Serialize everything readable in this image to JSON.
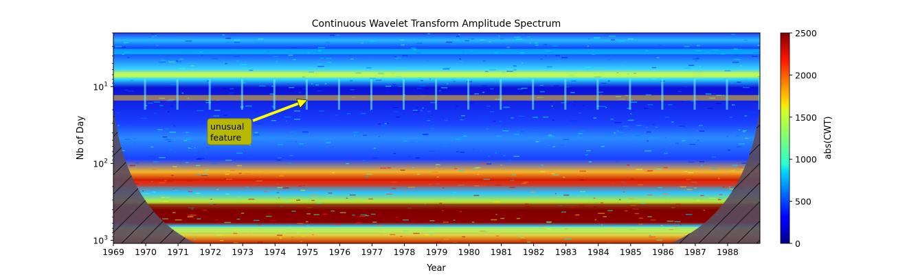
{
  "chart_data": {
    "type": "heatmap",
    "title": "Continuous Wavelet Transform Amplitude Spectrum",
    "xlabel": "Year",
    "ylabel": "Nb of Day",
    "x_range": [
      1969,
      1989
    ],
    "x_ticks": [
      "1969",
      "1970",
      "1971",
      "1972",
      "1973",
      "1974",
      "1975",
      "1976",
      "1977",
      "1978",
      "1979",
      "1980",
      "1981",
      "1982",
      "1983",
      "1984",
      "1985",
      "1986",
      "1987",
      "1988"
    ],
    "y_scale": "log",
    "y_inverted": true,
    "y_range": [
      2,
      1100
    ],
    "y_ticks": [
      {
        "value": 10,
        "base": "10",
        "exp": "1"
      },
      {
        "value": 100,
        "base": "10",
        "exp": "2"
      },
      {
        "value": 1000,
        "base": "10",
        "exp": "3"
      }
    ],
    "colorbar": {
      "label": "abs(CWT)",
      "colormap": "jet",
      "range": [
        0,
        2500
      ],
      "ticks": [
        "0",
        "500",
        "1000",
        "1500",
        "2000",
        "2500"
      ]
    },
    "bands": [
      {
        "period_days": 3.5,
        "amplitude": 900
      },
      {
        "period_days": 7,
        "amplitude": 1400
      },
      {
        "period_days": 14,
        "amplitude": 1700
      },
      {
        "period_days": 182,
        "amplitude": 2100
      },
      {
        "period_days": 365,
        "amplitude": 2500
      },
      {
        "period_days": 730,
        "amplitude": 1500
      }
    ],
    "cone_of_influence": {
      "hatched": true,
      "color": "#5a4b5e"
    },
    "annotation": {
      "text_lines": [
        "unusual",
        "feature"
      ],
      "box_color": "#b8b800",
      "arrow_color": "#ffff00",
      "target": {
        "year": 1975,
        "period_days": 15
      }
    }
  }
}
